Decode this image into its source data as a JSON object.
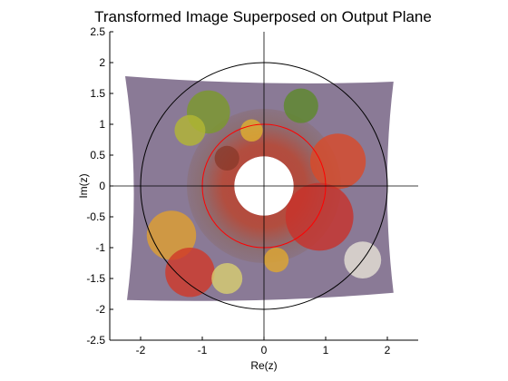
{
  "window": {
    "background": "#ffffff"
  },
  "chart_data": {
    "type": "scatter",
    "title": "Transformed Image Superposed on Output Plane",
    "xlabel": "Re(z)",
    "ylabel": "Im(z)",
    "xlim": [
      -2.5,
      2.5
    ],
    "ylim": [
      -2.5,
      2.5
    ],
    "xticks": [
      "-2",
      "-1",
      "0",
      "1",
      "2"
    ],
    "xtick_values": [
      -2,
      -1,
      0,
      1,
      2
    ],
    "yticks": [
      "2.5",
      "2",
      "1.5",
      "1",
      "0.5",
      "0",
      "-0.5",
      "-1",
      "-1.5",
      "-2",
      "-2.5"
    ],
    "ytick_values": [
      2.5,
      2,
      1.5,
      1,
      0.5,
      0,
      -0.5,
      -1,
      -1.5,
      -2,
      -2.5
    ],
    "grid": false,
    "legend": "none",
    "image_overlay": {
      "description_source": "transformed peppers image warped onto the output plane",
      "x_extent": [
        -2.25,
        2.1
      ],
      "y_extent": [
        -1.85,
        1.78
      ],
      "hole_radius": 0.48,
      "tint": "#8a7a96"
    },
    "series": [
      {
        "type": "circle",
        "center": [
          0,
          0
        ],
        "radius": 2.0,
        "color": "#000000"
      },
      {
        "type": "circle",
        "center": [
          0,
          0
        ],
        "radius": 1.0,
        "color": "#ff0000"
      },
      {
        "type": "hline",
        "y": 0,
        "x_range": [
          -2.5,
          2.5
        ],
        "color": "#000000"
      },
      {
        "type": "vline",
        "x": 0,
        "y_range": [
          -2.5,
          2.5
        ],
        "color": "#000000"
      }
    ]
  }
}
